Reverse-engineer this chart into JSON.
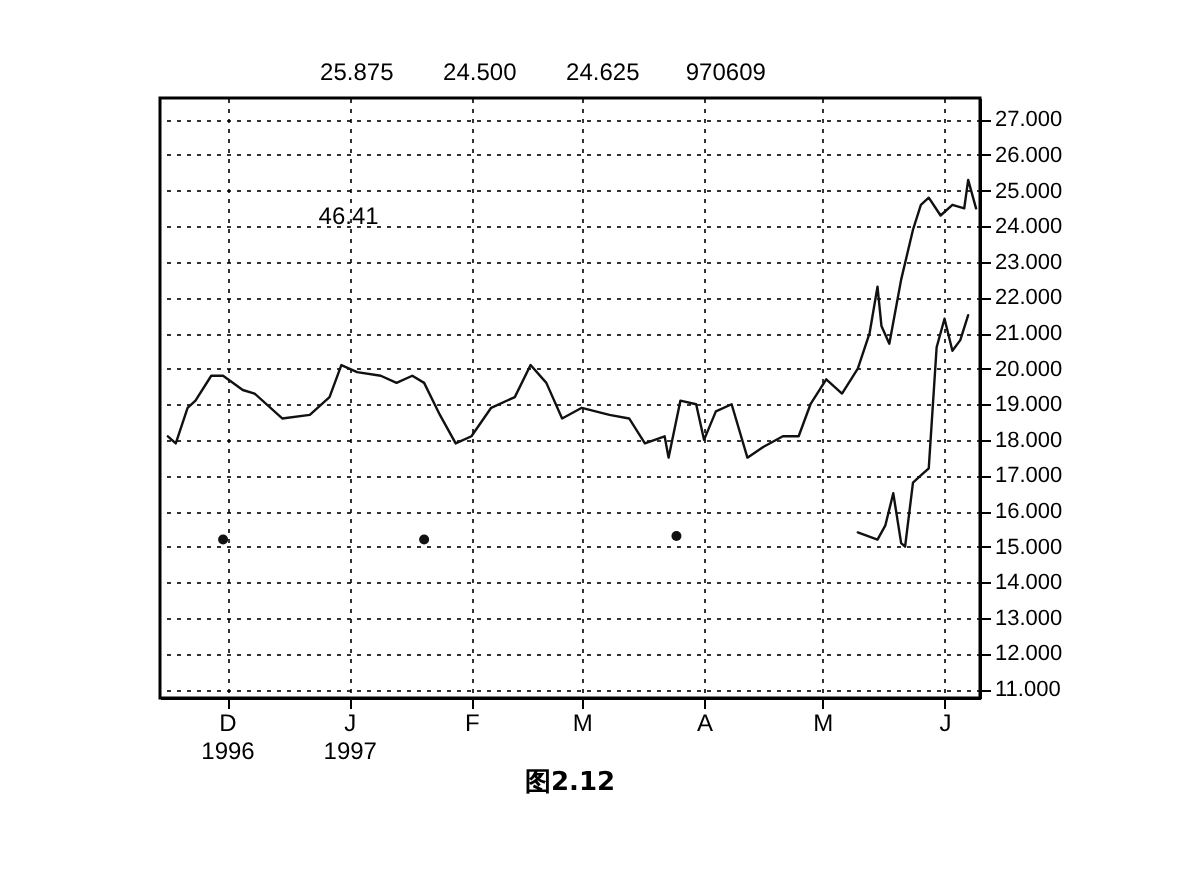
{
  "chart_data": {
    "type": "line",
    "title": "图2.12",
    "annotations": [
      "25.875",
      "24.500",
      "24.625",
      "970609",
      "46.41"
    ],
    "xlim": [
      "1996-11-14",
      "1997-06-10"
    ],
    "ylim": [
      10.75,
      27.6
    ],
    "xticks": [
      {
        "value": "1996-12-01",
        "label": "D\n1996"
      },
      {
        "value": "1997-01-01",
        "label": "J\n1997"
      },
      {
        "value": "1997-02-01",
        "label": "F"
      },
      {
        "value": "1997-03-01",
        "label": "M"
      },
      {
        "value": "1997-04-01",
        "label": "A"
      },
      {
        "value": "1997-05-01",
        "label": "M"
      },
      {
        "value": "1997-06-01",
        "label": "J"
      }
    ],
    "yticks": [
      {
        "value": 11,
        "label": "11.000"
      },
      {
        "value": 12,
        "label": "12.000"
      },
      {
        "value": 13,
        "label": "13.000"
      },
      {
        "value": 14,
        "label": "14.000"
      },
      {
        "value": 15,
        "label": "15.000"
      },
      {
        "value": 16,
        "label": "16.000"
      },
      {
        "value": 17,
        "label": "17.000"
      },
      {
        "value": 18,
        "label": "18.000"
      },
      {
        "value": 19,
        "label": "19.000"
      },
      {
        "value": 20,
        "label": "20.000"
      },
      {
        "value": 21,
        "label": "21.000"
      },
      {
        "value": 22,
        "label": "22.000"
      },
      {
        "value": 23,
        "label": "23.000"
      },
      {
        "value": 24,
        "label": "24.000"
      },
      {
        "value": 25,
        "label": "25.000"
      },
      {
        "value": 26,
        "label": "26.000"
      },
      {
        "value": 27,
        "label": "27.000"
      }
    ],
    "grid": true,
    "line_style": "solid",
    "series": [
      {
        "color": "#111111",
        "x": [
          "1996-11-16",
          "1996-11-18",
          "1996-11-21",
          "1996-11-23",
          "1996-11-27",
          "1996-11-30",
          "1996-12-05",
          "1996-12-08",
          "1996-12-15",
          "1996-12-22",
          "1996-12-27",
          "1996-12-30",
          "1997-01-03",
          "1997-01-09",
          "1997-01-13",
          "1997-01-17",
          "1997-01-20",
          "1997-01-24",
          "1997-01-28",
          "1997-02-01",
          "1997-02-06",
          "1997-02-12",
          "1997-02-16",
          "1997-02-20",
          "1997-02-24",
          "1997-03-01",
          "1997-03-08",
          "1997-03-13",
          "1997-03-17",
          "1997-03-22",
          "1997-03-23",
          "1997-03-26",
          "1997-03-30",
          "1997-04-01",
          "1997-04-04",
          "1997-04-08",
          "1997-04-12",
          "1997-04-16",
          "1997-04-21",
          "1997-04-25",
          "1997-04-28",
          "1997-05-02",
          "1997-05-06",
          "1997-05-10",
          "1997-05-13",
          "1997-05-15",
          "1997-05-16",
          "1997-05-18",
          "1997-05-21",
          "1997-05-24",
          "1997-05-26",
          "1997-05-28",
          "1997-05-31",
          "1997-06-03",
          "1997-06-06",
          "1997-06-07",
          "1997-06-09"
        ],
        "values": [
          18.1,
          17.9,
          18.9,
          19.1,
          19.8,
          19.8,
          19.4,
          19.3,
          18.6,
          18.7,
          19.2,
          20.1,
          19.9,
          19.8,
          19.6,
          19.8,
          19.6,
          18.7,
          17.9,
          18.1,
          18.9,
          19.2,
          20.1,
          19.6,
          18.6,
          18.9,
          18.7,
          18.6,
          17.9,
          18.1,
          17.5,
          19.1,
          19.0,
          18.0,
          18.8,
          19.0,
          17.5,
          17.8,
          18.1,
          18.1,
          19.0,
          19.7,
          19.3,
          20.0,
          21.0,
          22.3,
          21.2,
          20.7,
          22.5,
          23.9,
          24.6,
          24.8,
          24.3,
          24.6,
          24.5,
          25.3,
          24.5
        ]
      },
      {
        "color": "#111111",
        "x": [
          "1997-05-10",
          "1997-05-15",
          "1997-05-17",
          "1997-05-19",
          "1997-05-21",
          "1997-05-22",
          "1997-05-24",
          "1997-05-26",
          "1997-05-28",
          "1997-05-30",
          "1997-06-01",
          "1997-06-03",
          "1997-06-05",
          "1997-06-07"
        ],
        "values": [
          15.4,
          15.2,
          15.6,
          16.5,
          15.1,
          15.0,
          16.8,
          17.0,
          17.2,
          20.6,
          21.4,
          20.5,
          20.8,
          21.5
        ]
      },
      {
        "type": "scatter",
        "marker": "circle",
        "color": "#111111",
        "x": [
          "1996-11-30",
          "1997-01-20",
          "1997-03-25"
        ],
        "values": [
          15.2,
          15.2,
          15.3
        ]
      }
    ]
  }
}
